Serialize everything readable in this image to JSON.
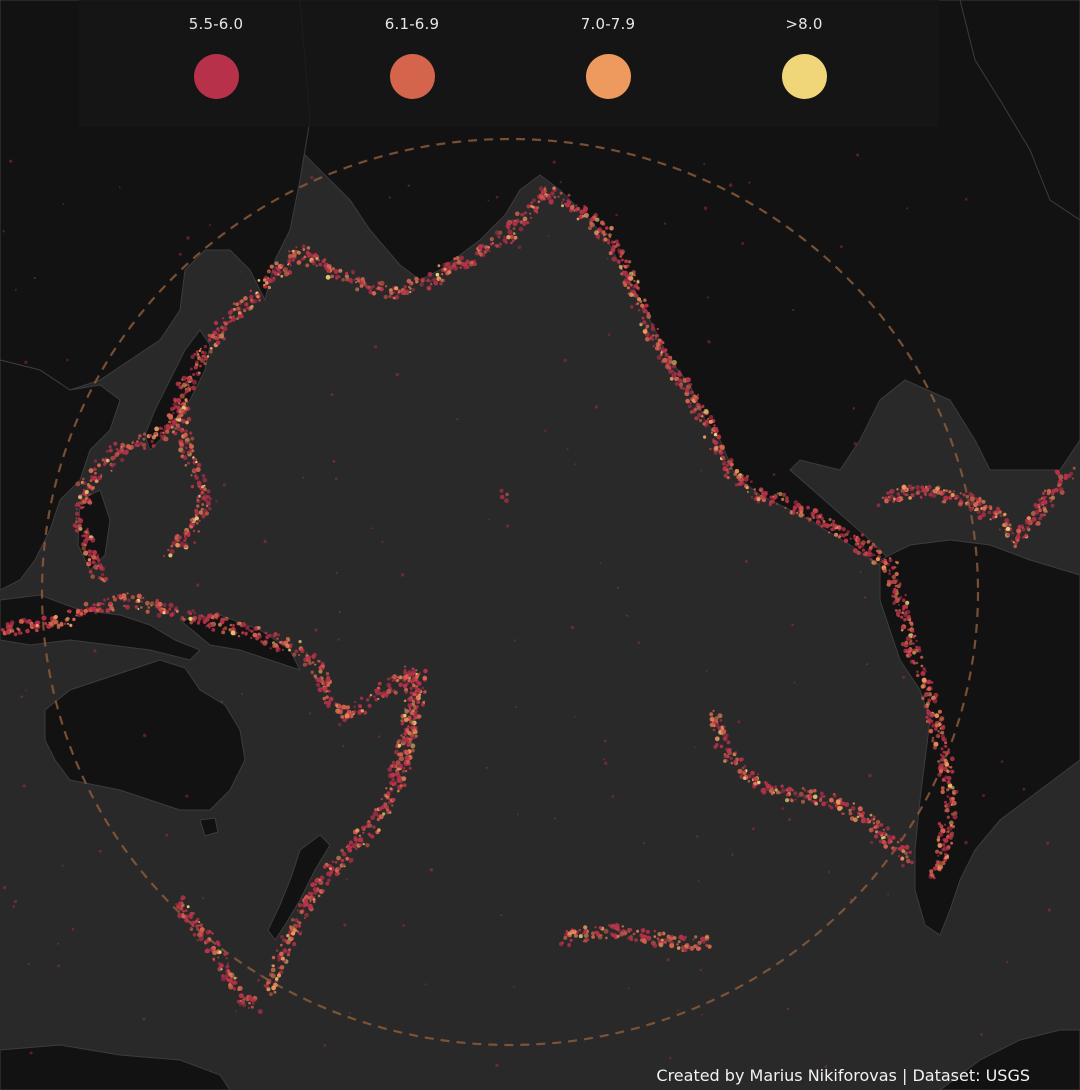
{
  "legend": {
    "items": [
      {
        "label": "5.5-6.0",
        "color": "#b8314a"
      },
      {
        "label": "6.1-6.9",
        "color": "#d4644c"
      },
      {
        "label": "7.0-7.9",
        "color": "#ee9a5e"
      },
      {
        "label": ">8.0",
        "color": "#f0d679"
      }
    ]
  },
  "credit": "Created by Marius Nikiforovas | Dataset: USGS",
  "colors": {
    "ocean": "#292929",
    "land": "#121212",
    "ring_of_fire_outline": "#8a5a3a"
  }
}
